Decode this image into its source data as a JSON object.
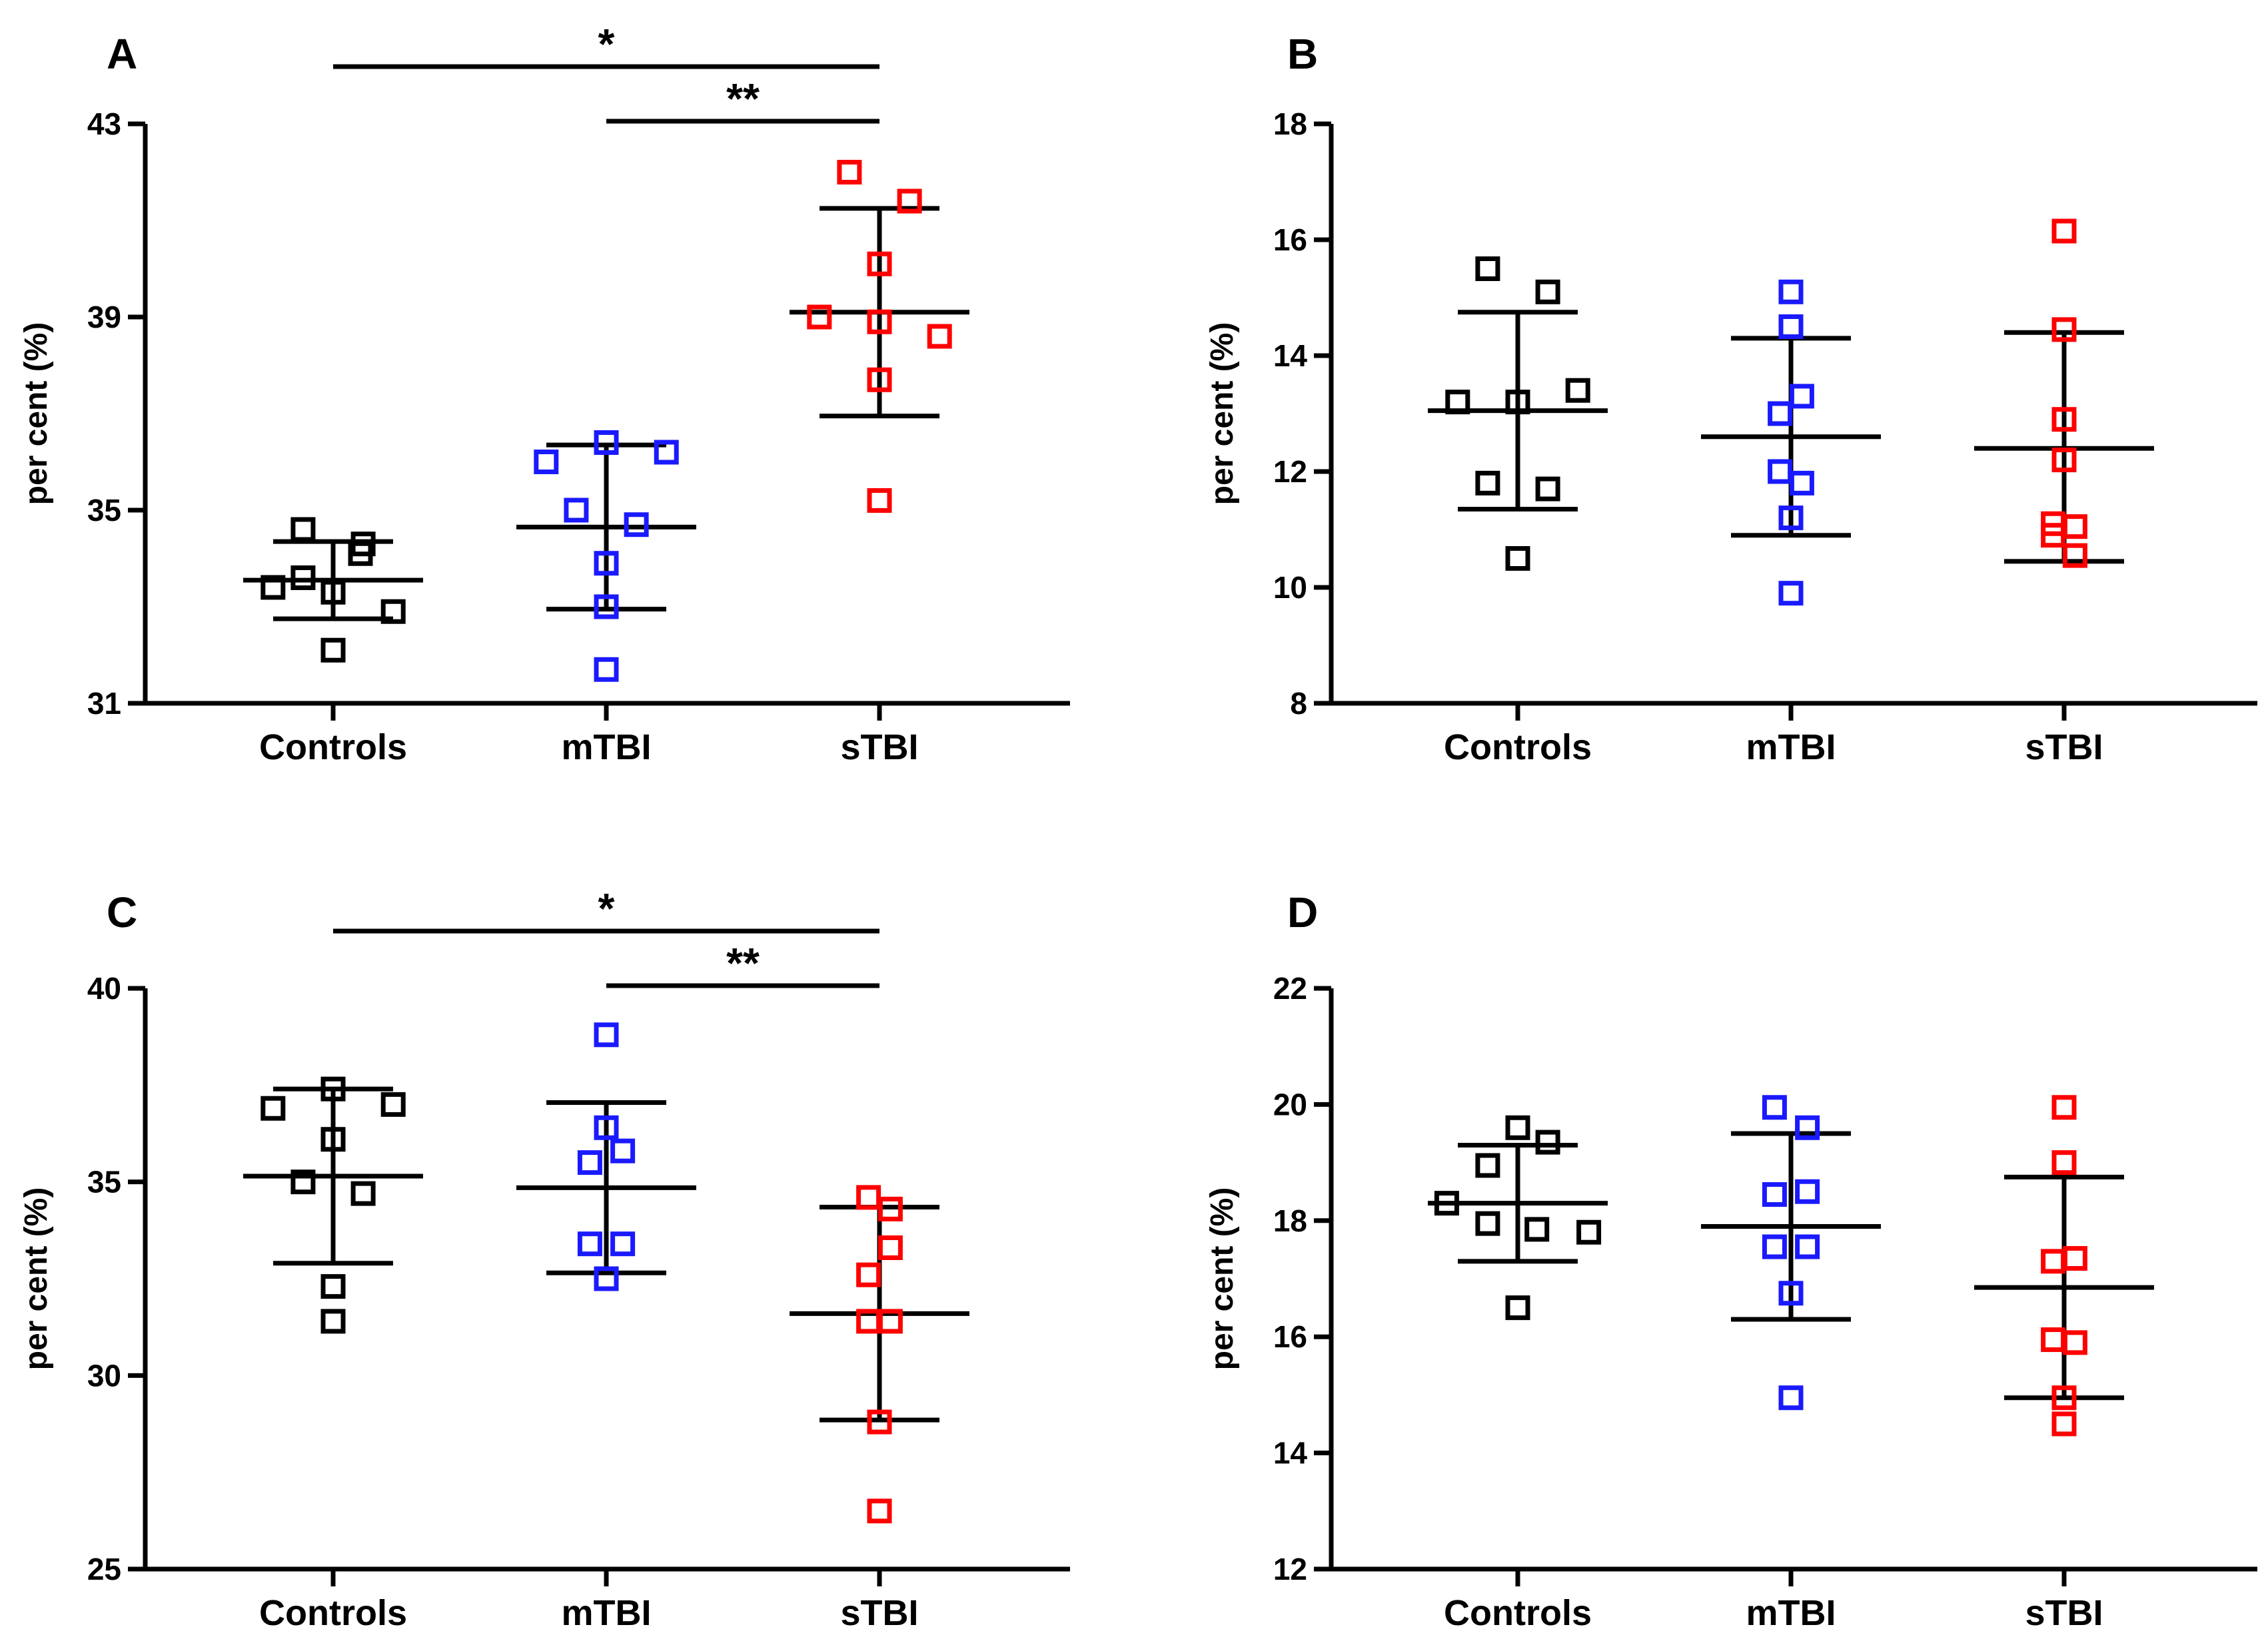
{
  "chart_data": [
    {
      "type": "scatter",
      "panel_label": "A",
      "ylabel": "per cent (%)",
      "ylim": [
        31,
        43
      ],
      "yticks": [
        31,
        35,
        39,
        43
      ],
      "categories": [
        "Controls",
        "mTBI",
        "sTBI"
      ],
      "series": [
        {
          "name": "Controls",
          "color": "#000000",
          "points": [
            [
              -0.22,
              33.4
            ],
            [
              -0.11,
              33.6
            ],
            [
              0.0,
              33.3
            ],
            [
              0.1,
              34.1
            ],
            [
              0.11,
              34.3
            ],
            [
              -0.11,
              34.6
            ],
            [
              0.22,
              32.9
            ],
            [
              0.0,
              32.1
            ]
          ],
          "mean": 33.55,
          "sd_low": 32.75,
          "sd_high": 34.35
        },
        {
          "name": "mTBI",
          "color": "#1a1aff",
          "points": [
            [
              -0.22,
              36.0
            ],
            [
              -0.11,
              35.0
            ],
            [
              0.0,
              36.4
            ],
            [
              0.22,
              36.2
            ],
            [
              0.11,
              34.7
            ],
            [
              0.0,
              33.9
            ],
            [
              0.0,
              33.0
            ],
            [
              0.0,
              31.7
            ]
          ],
          "mean": 34.65,
          "sd_low": 32.95,
          "sd_high": 36.35
        },
        {
          "name": "sTBI",
          "color": "#ff0000",
          "points": [
            [
              -0.11,
              42.0
            ],
            [
              0.11,
              41.4
            ],
            [
              0.0,
              40.1
            ],
            [
              -0.22,
              39.0
            ],
            [
              0.0,
              38.9
            ],
            [
              0.22,
              38.6
            ],
            [
              0.0,
              37.7
            ],
            [
              0.0,
              35.2
            ]
          ],
          "mean": 39.1,
          "sd_low": 36.95,
          "sd_high": 41.25
        }
      ],
      "significance": [
        {
          "label": "*",
          "from": "Controls",
          "to": "sTBI"
        },
        {
          "label": "**",
          "from": "mTBI",
          "to": "sTBI"
        }
      ]
    },
    {
      "type": "scatter",
      "panel_label": "B",
      "ylabel": "per cent (%)",
      "ylim": [
        8,
        18
      ],
      "yticks": [
        8,
        10,
        12,
        14,
        16,
        18
      ],
      "categories": [
        "Controls",
        "mTBI",
        "sTBI"
      ],
      "series": [
        {
          "name": "Controls",
          "color": "#000000",
          "points": [
            [
              -0.11,
              15.5
            ],
            [
              0.11,
              15.1
            ],
            [
              -0.22,
              13.2
            ],
            [
              0.0,
              13.2
            ],
            [
              0.22,
              13.4
            ],
            [
              -0.11,
              11.8
            ],
            [
              0.11,
              11.7
            ],
            [
              0.0,
              10.5
            ]
          ],
          "mean": 13.05,
          "sd_low": 11.35,
          "sd_high": 14.75
        },
        {
          "name": "mTBI",
          "color": "#1a1aff",
          "points": [
            [
              0.0,
              15.1
            ],
            [
              0.0,
              14.5
            ],
            [
              0.04,
              13.3
            ],
            [
              -0.04,
              13.0
            ],
            [
              0.04,
              11.8
            ],
            [
              -0.04,
              12.0
            ],
            [
              0.0,
              11.2
            ],
            [
              0.0,
              9.9
            ]
          ],
          "mean": 12.6,
          "sd_low": 10.9,
          "sd_high": 14.3
        },
        {
          "name": "sTBI",
          "color": "#ff0000",
          "points": [
            [
              0.0,
              16.15
            ],
            [
              0.0,
              14.45
            ],
            [
              0.0,
              12.9
            ],
            [
              0.0,
              12.2
            ],
            [
              -0.04,
              11.1
            ],
            [
              0.04,
              11.05
            ],
            [
              -0.04,
              10.9
            ],
            [
              0.04,
              10.55
            ]
          ],
          "mean": 12.4,
          "sd_low": 10.45,
          "sd_high": 14.4
        }
      ],
      "significance": []
    },
    {
      "type": "scatter",
      "panel_label": "C",
      "ylabel": "per cent (%)",
      "ylim": [
        25,
        40
      ],
      "yticks": [
        25,
        30,
        35,
        40
      ],
      "categories": [
        "Controls",
        "mTBI",
        "sTBI"
      ],
      "series": [
        {
          "name": "Controls",
          "color": "#000000",
          "points": [
            [
              0.0,
              37.4
            ],
            [
              -0.22,
              36.9
            ],
            [
              0.22,
              37.0
            ],
            [
              0.0,
              36.1
            ],
            [
              -0.11,
              35.0
            ],
            [
              0.11,
              34.7
            ],
            [
              0.0,
              32.3
            ],
            [
              0.0,
              31.4
            ]
          ],
          "mean": 35.15,
          "sd_low": 32.9,
          "sd_high": 37.4
        },
        {
          "name": "mTBI",
          "color": "#1a1aff",
          "points": [
            [
              0.0,
              38.8
            ],
            [
              0.0,
              36.4
            ],
            [
              -0.06,
              35.5
            ],
            [
              0.06,
              35.8
            ],
            [
              -0.06,
              33.4
            ],
            [
              0.06,
              33.4
            ],
            [
              0.0,
              32.5
            ],
            [
              0.0,
              32.5
            ]
          ],
          "mean": 34.85,
          "sd_low": 32.65,
          "sd_high": 37.05
        },
        {
          "name": "sTBI",
          "color": "#ff0000",
          "points": [
            [
              -0.04,
              34.6
            ],
            [
              0.04,
              34.3
            ],
            [
              0.04,
              33.3
            ],
            [
              -0.04,
              32.6
            ],
            [
              -0.04,
              31.4
            ],
            [
              0.04,
              31.4
            ],
            [
              0.0,
              28.8
            ],
            [
              0.0,
              26.5
            ]
          ],
          "mean": 31.6,
          "sd_low": 28.85,
          "sd_high": 34.35
        }
      ],
      "significance": [
        {
          "label": "*",
          "from": "Controls",
          "to": "sTBI"
        },
        {
          "label": "**",
          "from": "mTBI",
          "to": "sTBI"
        }
      ]
    },
    {
      "type": "scatter",
      "panel_label": "D",
      "ylabel": "per cent (%)",
      "ylim": [
        12,
        22
      ],
      "yticks": [
        12,
        14,
        16,
        18,
        20,
        22
      ],
      "categories": [
        "Controls",
        "mTBI",
        "sTBI"
      ],
      "series": [
        {
          "name": "Controls",
          "color": "#000000",
          "points": [
            [
              0.0,
              19.6
            ],
            [
              0.11,
              19.35
            ],
            [
              -0.11,
              18.95
            ],
            [
              -0.26,
              18.3
            ],
            [
              -0.11,
              17.95
            ],
            [
              0.07,
              17.85
            ],
            [
              0.26,
              17.8
            ],
            [
              0.0,
              16.5
            ]
          ],
          "mean": 18.3,
          "sd_low": 17.3,
          "sd_high": 19.3
        },
        {
          "name": "mTBI",
          "color": "#1a1aff",
          "points": [
            [
              -0.06,
              19.95
            ],
            [
              0.06,
              19.6
            ],
            [
              -0.06,
              18.45
            ],
            [
              0.06,
              18.5
            ],
            [
              -0.06,
              17.55
            ],
            [
              0.06,
              17.55
            ],
            [
              0.0,
              16.75
            ],
            [
              0.0,
              14.95
            ]
          ],
          "mean": 17.9,
          "sd_low": 16.3,
          "sd_high": 19.5
        },
        {
          "name": "sTBI",
          "color": "#ff0000",
          "points": [
            [
              0.0,
              19.95
            ],
            [
              0.0,
              19.0
            ],
            [
              -0.04,
              17.3
            ],
            [
              0.04,
              17.35
            ],
            [
              -0.04,
              15.95
            ],
            [
              0.04,
              15.9
            ],
            [
              0.0,
              14.95
            ],
            [
              0.0,
              14.5
            ]
          ],
          "mean": 16.85,
          "sd_low": 14.95,
          "sd_high": 18.75
        }
      ],
      "significance": []
    }
  ]
}
